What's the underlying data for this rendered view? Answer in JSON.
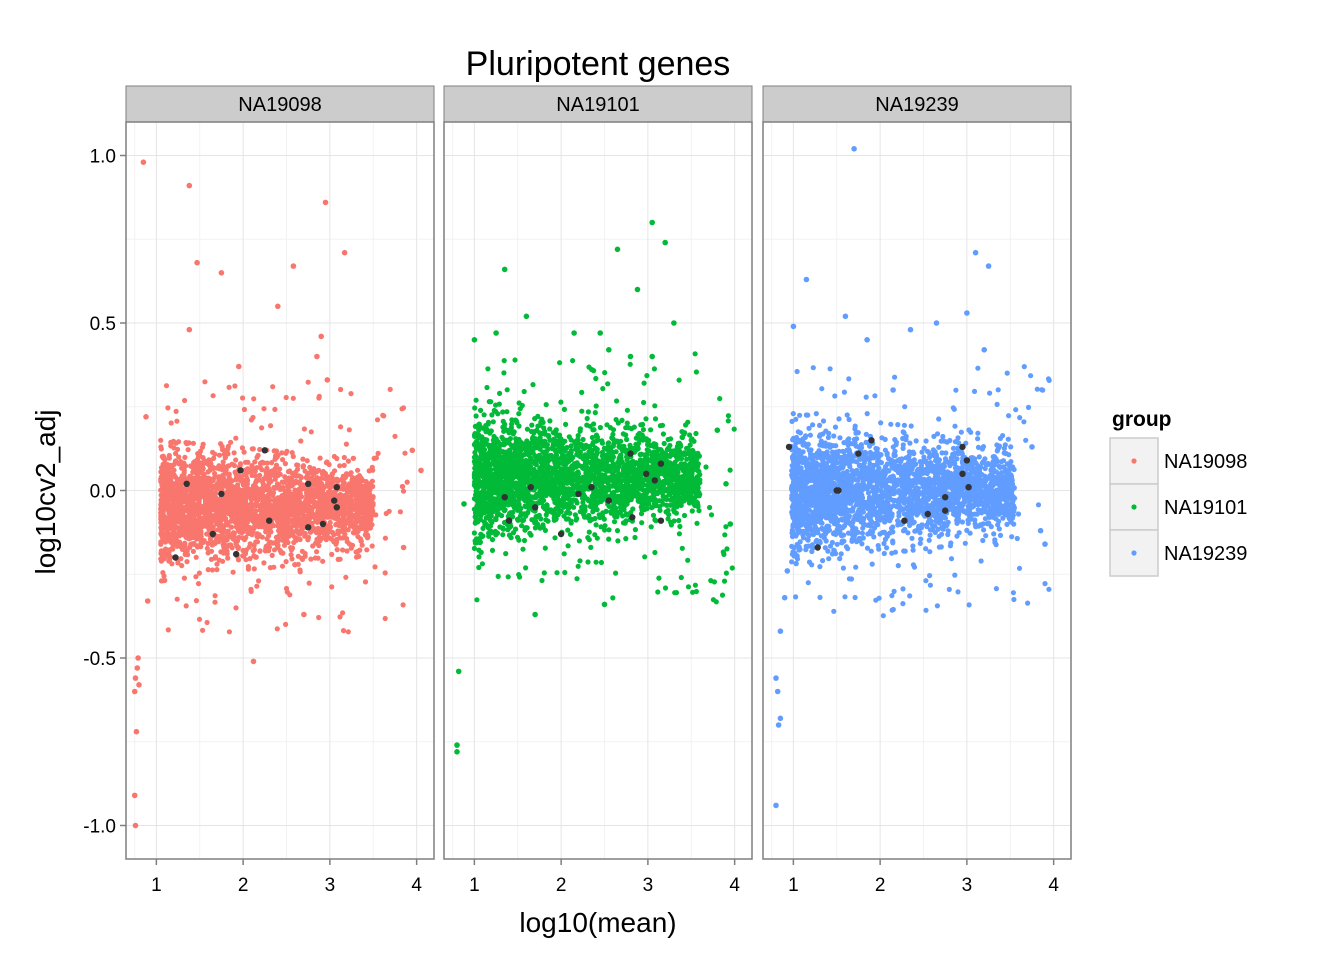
{
  "chart_data": {
    "type": "scatter",
    "title": "Pluripotent genes",
    "xlabel": "log10(mean)",
    "ylabel": "log10cv2_adj",
    "xlim": [
      0.65,
      4.2
    ],
    "ylim": [
      -1.1,
      1.1
    ],
    "x_ticks": [
      1,
      2,
      3,
      4
    ],
    "y_ticks": [
      {
        "value": 1.0,
        "label": "1.0"
      },
      {
        "value": 0.5,
        "label": "0.5"
      },
      {
        "value": 0.0,
        "label": "0.0"
      },
      {
        "value": -0.5,
        "label": "-0.5"
      },
      {
        "value": -1.0,
        "label": "-1.0"
      }
    ],
    "grid": true,
    "legend": {
      "title": "group",
      "placement": "right",
      "entries": [
        "NA19098",
        "NA19101",
        "NA19239"
      ]
    },
    "pluripotent_color": "#333333",
    "panels": [
      {
        "name": "NA19098",
        "color": "#F8766D",
        "cloud": {
          "x_range": [
            1.05,
            3.5
          ],
          "center": -0.05,
          "spread_low": 0.22,
          "spread_high": 0.17
        },
        "outliers": [
          [
            0.85,
            0.98
          ],
          [
            1.38,
            0.91
          ],
          [
            1.47,
            0.68
          ],
          [
            1.75,
            0.65
          ],
          [
            2.58,
            0.67
          ],
          [
            2.4,
            0.55
          ],
          [
            2.95,
            0.86
          ],
          [
            3.17,
            0.71
          ],
          [
            1.38,
            0.48
          ],
          [
            2.9,
            0.46
          ],
          [
            2.85,
            0.4
          ],
          [
            2.97,
            0.33
          ],
          [
            1.95,
            0.37
          ],
          [
            2.12,
            -0.51
          ],
          [
            2.7,
            -0.37
          ],
          [
            3.85,
            -0.17
          ],
          [
            4.05,
            0.06
          ],
          [
            3.95,
            0.12
          ],
          [
            0.79,
            -0.5
          ],
          [
            0.78,
            -0.53
          ],
          [
            0.76,
            -0.56
          ],
          [
            0.8,
            -0.58
          ],
          [
            0.75,
            -0.6
          ],
          [
            0.77,
            -0.72
          ],
          [
            0.75,
            -0.91
          ],
          [
            0.76,
            -1.0
          ],
          [
            0.9,
            -0.33
          ],
          [
            0.88,
            0.22
          ]
        ],
        "pluripotent": [
          [
            1.35,
            0.02
          ],
          [
            1.22,
            -0.2
          ],
          [
            1.75,
            -0.01
          ],
          [
            1.65,
            -0.13
          ],
          [
            1.97,
            0.06
          ],
          [
            2.25,
            0.12
          ],
          [
            2.3,
            -0.09
          ],
          [
            1.92,
            -0.19
          ],
          [
            2.75,
            0.02
          ],
          [
            2.92,
            -0.1
          ],
          [
            2.75,
            -0.11
          ],
          [
            3.08,
            0.01
          ],
          [
            3.05,
            -0.03
          ],
          [
            3.08,
            -0.05
          ]
        ]
      },
      {
        "name": "NA19101",
        "color": "#00BA38",
        "cloud": {
          "x_range": [
            1.0,
            3.6
          ],
          "center": 0.04,
          "spread_low": 0.24,
          "spread_high": 0.2
        },
        "outliers": [
          [
            3.05,
            0.8
          ],
          [
            3.2,
            0.74
          ],
          [
            2.65,
            0.72
          ],
          [
            1.35,
            0.66
          ],
          [
            2.88,
            0.6
          ],
          [
            1.6,
            0.52
          ],
          [
            3.3,
            0.5
          ],
          [
            1.25,
            0.47
          ],
          [
            1.0,
            0.45
          ],
          [
            2.15,
            0.47
          ],
          [
            2.45,
            0.47
          ],
          [
            2.55,
            0.42
          ],
          [
            2.8,
            0.4
          ],
          [
            3.05,
            0.4
          ],
          [
            2.5,
            -0.34
          ],
          [
            1.7,
            -0.37
          ],
          [
            0.82,
            -0.54
          ],
          [
            0.8,
            -0.76
          ],
          [
            0.8,
            -0.78
          ],
          [
            0.88,
            -0.04
          ],
          [
            3.9,
            0.02
          ],
          [
            3.95,
            -0.1
          ],
          [
            3.8,
            0.18
          ]
        ],
        "pluripotent": [
          [
            1.65,
            0.01
          ],
          [
            1.35,
            -0.02
          ],
          [
            1.4,
            -0.09
          ],
          [
            1.7,
            -0.05
          ],
          [
            2.0,
            -0.13
          ],
          [
            2.2,
            -0.01
          ],
          [
            2.35,
            0.01
          ],
          [
            2.55,
            -0.03
          ],
          [
            2.8,
            0.11
          ],
          [
            2.82,
            -0.08
          ],
          [
            2.98,
            0.05
          ],
          [
            3.08,
            0.03
          ],
          [
            3.15,
            0.08
          ],
          [
            3.15,
            -0.09
          ]
        ]
      },
      {
        "name": "NA19239",
        "color": "#619CFF",
        "cloud": {
          "x_range": [
            0.98,
            3.55
          ],
          "center": 0.0,
          "spread_low": 0.22,
          "spread_high": 0.2
        },
        "outliers": [
          [
            1.7,
            1.02
          ],
          [
            3.1,
            0.71
          ],
          [
            3.25,
            0.67
          ],
          [
            1.15,
            0.63
          ],
          [
            1.0,
            0.49
          ],
          [
            1.6,
            0.52
          ],
          [
            2.35,
            0.48
          ],
          [
            2.65,
            0.5
          ],
          [
            3.0,
            0.53
          ],
          [
            3.2,
            0.42
          ],
          [
            1.85,
            0.45
          ],
          [
            0.93,
            -0.24
          ],
          [
            0.9,
            -0.32
          ],
          [
            0.85,
            -0.42
          ],
          [
            0.8,
            -0.56
          ],
          [
            0.82,
            -0.6
          ],
          [
            0.85,
            -0.68
          ],
          [
            0.83,
            -0.7
          ],
          [
            0.8,
            -0.94
          ],
          [
            3.75,
            0.13
          ],
          [
            3.85,
            -0.12
          ],
          [
            3.9,
            -0.16
          ],
          [
            2.15,
            0.3
          ]
        ],
        "pluripotent": [
          [
            0.95,
            0.13
          ],
          [
            1.5,
            0.0
          ],
          [
            1.52,
            0.0
          ],
          [
            1.75,
            0.11
          ],
          [
            1.9,
            0.15
          ],
          [
            1.28,
            -0.17
          ],
          [
            2.28,
            -0.09
          ],
          [
            2.55,
            -0.07
          ],
          [
            2.75,
            -0.06
          ],
          [
            2.75,
            -0.02
          ],
          [
            2.95,
            0.05
          ],
          [
            3.0,
            0.09
          ],
          [
            3.02,
            0.01
          ],
          [
            2.95,
            0.13
          ]
        ]
      }
    ]
  }
}
